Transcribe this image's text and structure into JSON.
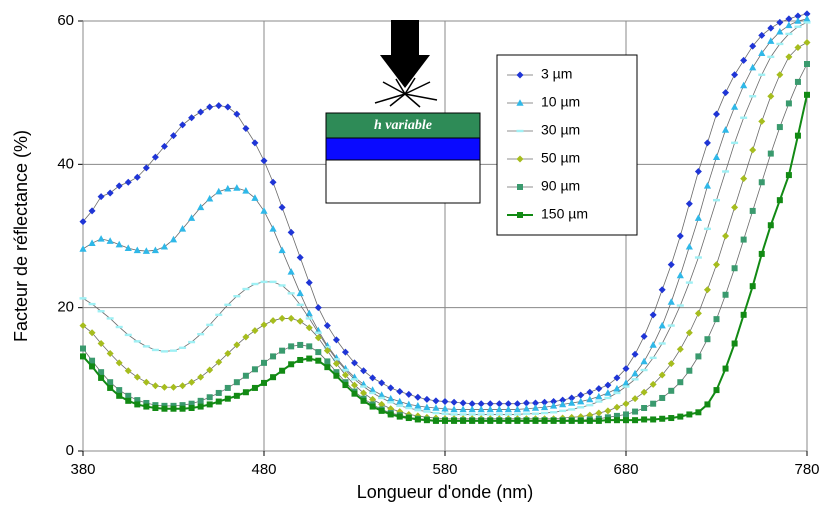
{
  "chart_data": {
    "type": "line",
    "x_label": "Longueur d'onde (nm)",
    "y_label": "Facteur de réflectance (%)",
    "annotations": [
      "h variable"
    ],
    "x": [
      380,
      385,
      390,
      395,
      400,
      405,
      410,
      415,
      420,
      425,
      430,
      435,
      440,
      445,
      450,
      455,
      460,
      465,
      470,
      475,
      480,
      485,
      490,
      495,
      500,
      505,
      510,
      515,
      520,
      525,
      530,
      535,
      540,
      545,
      550,
      555,
      560,
      565,
      570,
      575,
      580,
      585,
      590,
      595,
      600,
      605,
      610,
      615,
      620,
      625,
      630,
      635,
      640,
      645,
      650,
      655,
      660,
      665,
      670,
      675,
      680,
      685,
      690,
      695,
      700,
      705,
      710,
      715,
      720,
      725,
      730,
      735,
      740,
      745,
      750,
      755,
      760,
      765,
      770,
      775,
      780
    ],
    "xlim": [
      380,
      780
    ],
    "xticks": [
      380,
      480,
      580,
      680,
      780
    ],
    "ylim": [
      0,
      60
    ],
    "yticks": [
      0,
      20,
      40,
      60
    ],
    "grid": true,
    "series": [
      {
        "name": "3 µm",
        "color": "#1f35d6",
        "marker": "diamond",
        "values": [
          32,
          33.5,
          35.5,
          36,
          37,
          37.5,
          38.2,
          39.5,
          41,
          42.5,
          44,
          45.5,
          46.5,
          47.3,
          48,
          48.2,
          48,
          47,
          45,
          43,
          40.5,
          37.5,
          34,
          30.5,
          27,
          23.5,
          20,
          17.5,
          15.5,
          13.8,
          12.3,
          11.2,
          10.2,
          9.5,
          8.8,
          8.3,
          7.9,
          7.5,
          7.2,
          7,
          6.9,
          6.8,
          6.7,
          6.6,
          6.6,
          6.6,
          6.6,
          6.6,
          6.6,
          6.7,
          6.7,
          6.8,
          6.9,
          7.1,
          7.4,
          7.8,
          8.2,
          8.7,
          9.2,
          10.2,
          11.5,
          13.5,
          16,
          19,
          22.5,
          26,
          30,
          34.5,
          39,
          43,
          47,
          50,
          52.5,
          54.5,
          56.5,
          58,
          59,
          59.8,
          60.3,
          60.7,
          61
        ]
      },
      {
        "name": "10 µm",
        "color": "#2fb8e8",
        "marker": "triangle",
        "values": [
          28.2,
          29,
          29.6,
          29.3,
          28.8,
          28.3,
          28,
          27.9,
          28,
          28.5,
          29.5,
          31,
          32.5,
          34,
          35.2,
          36.2,
          36.6,
          36.7,
          36.3,
          35.3,
          33.5,
          31,
          28,
          25,
          22,
          19.2,
          16.8,
          14.7,
          13,
          11.5,
          10.3,
          9.3,
          8.5,
          7.8,
          7.3,
          6.9,
          6.5,
          6.3,
          6.1,
          6,
          5.9,
          5.8,
          5.8,
          5.8,
          5.8,
          5.8,
          5.8,
          5.8,
          5.8,
          5.9,
          6,
          6.1,
          6.3,
          6.5,
          6.7,
          6.9,
          7.2,
          7.6,
          8.1,
          8.7,
          9.5,
          10.8,
          12.5,
          14.8,
          17.5,
          20.8,
          24.5,
          28.5,
          32.5,
          37,
          41,
          44.8,
          48,
          51,
          53.5,
          55.5,
          57.2,
          58.5,
          59.4,
          60,
          60.3
        ]
      },
      {
        "name": "30 µm",
        "color": "#9ff0f4",
        "marker": "dash",
        "values": [
          21.3,
          20.5,
          19.5,
          18.5,
          17.3,
          16.2,
          15.3,
          14.6,
          14.1,
          13.9,
          14,
          14.4,
          15.2,
          16.3,
          17.6,
          19,
          20.4,
          21.6,
          22.6,
          23.3,
          23.6,
          23.6,
          23.1,
          22,
          20.4,
          18.5,
          16.5,
          14.5,
          12.8,
          11.3,
          10,
          9,
          8.1,
          7.4,
          6.8,
          6.3,
          6,
          5.7,
          5.5,
          5.3,
          5.2,
          5.1,
          5.1,
          5.1,
          5.1,
          5.1,
          5.1,
          5.1,
          5.1,
          5.2,
          5.2,
          5.3,
          5.4,
          5.6,
          5.8,
          6.1,
          6.4,
          6.9,
          7.4,
          8.1,
          9,
          10,
          11.3,
          13,
          15,
          17.5,
          20.3,
          23.5,
          27,
          31,
          35,
          39,
          43,
          46.5,
          49.5,
          52.5,
          55,
          56.8,
          58.2,
          59.2,
          59.8
        ]
      },
      {
        "name": "50 µm",
        "color": "#a6bd1e",
        "marker": "diamond",
        "values": [
          17.5,
          16.5,
          15,
          13.6,
          12.3,
          11.2,
          10.3,
          9.6,
          9.1,
          8.9,
          8.9,
          9.1,
          9.6,
          10.3,
          11.3,
          12.4,
          13.6,
          14.8,
          15.9,
          16.8,
          17.6,
          18.2,
          18.5,
          18.5,
          18.1,
          17.2,
          15.8,
          14,
          12.2,
          10.6,
          9.2,
          8.1,
          7.2,
          6.5,
          5.9,
          5.5,
          5.1,
          4.9,
          4.7,
          4.6,
          4.5,
          4.5,
          4.5,
          4.5,
          4.5,
          4.5,
          4.5,
          4.5,
          4.5,
          4.5,
          4.5,
          4.5,
          4.5,
          4.6,
          4.7,
          4.8,
          5,
          5.3,
          5.6,
          6.1,
          6.6,
          7.3,
          8.2,
          9.3,
          10.6,
          12.2,
          14.2,
          16.5,
          19.2,
          22.5,
          26,
          30,
          34,
          38,
          42,
          46,
          49.5,
          52.5,
          55,
          56.3,
          57
        ]
      },
      {
        "name": "90 µm",
        "color": "#3a9a6e",
        "marker": "square",
        "values": [
          14.3,
          12.6,
          11,
          9.6,
          8.5,
          7.7,
          7.1,
          6.7,
          6.4,
          6.3,
          6.3,
          6.4,
          6.6,
          7,
          7.5,
          8.1,
          8.8,
          9.6,
          10.5,
          11.4,
          12.3,
          13.2,
          14,
          14.6,
          14.8,
          14.6,
          13.8,
          12.5,
          11,
          9.6,
          8.3,
          7.3,
          6.5,
          5.8,
          5.3,
          5,
          4.7,
          4.5,
          4.4,
          4.3,
          4.3,
          4.3,
          4.3,
          4.3,
          4.3,
          4.3,
          4.3,
          4.3,
          4.3,
          4.3,
          4.3,
          4.3,
          4.3,
          4.3,
          4.3,
          4.3,
          4.4,
          4.5,
          4.7,
          4.9,
          5.1,
          5.5,
          6,
          6.6,
          7.4,
          8.4,
          9.6,
          11.2,
          13.2,
          15.6,
          18.4,
          21.8,
          25.5,
          29.5,
          33.5,
          37.5,
          41.5,
          45.2,
          48.5,
          51.5,
          54
        ]
      },
      {
        "name": "150 µm",
        "color": "#128a14",
        "marker": "square",
        "values": [
          13.2,
          11.8,
          10.2,
          8.8,
          7.7,
          7,
          6.5,
          6.2,
          6,
          5.9,
          5.9,
          5.9,
          6,
          6.2,
          6.5,
          6.9,
          7.3,
          7.7,
          8.2,
          8.8,
          9.5,
          10.3,
          11.2,
          12.1,
          12.7,
          12.9,
          12.6,
          11.7,
          10.5,
          9.2,
          8,
          7,
          6.2,
          5.6,
          5.1,
          4.8,
          4.6,
          4.4,
          4.3,
          4.2,
          4.2,
          4.2,
          4.2,
          4.2,
          4.2,
          4.2,
          4.2,
          4.2,
          4.2,
          4.2,
          4.2,
          4.2,
          4.2,
          4.2,
          4.2,
          4.2,
          4.2,
          4.2,
          4.3,
          4.3,
          4.3,
          4.3,
          4.4,
          4.4,
          4.5,
          4.6,
          4.8,
          5.1,
          5.4,
          6.5,
          8.5,
          11.5,
          15,
          19,
          23,
          27.5,
          31.5,
          35,
          38.5,
          44,
          49.7
        ]
      }
    ]
  }
}
